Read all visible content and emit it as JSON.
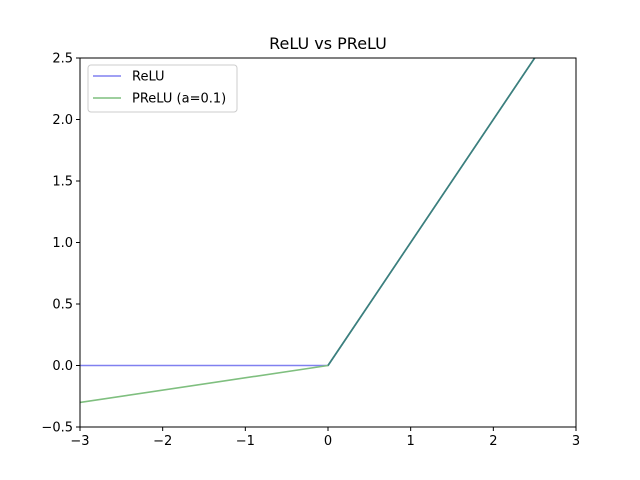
{
  "chart_data": {
    "type": "line",
    "title": "ReLU vs PReLU",
    "xlabel": "",
    "ylabel": "",
    "xlim": [
      -3,
      3
    ],
    "ylim": [
      -0.5,
      2.5
    ],
    "x_ticks": [
      -3,
      -2,
      -1,
      0,
      1,
      2,
      3
    ],
    "x_tick_labels": [
      "−3",
      "−2",
      "−1",
      "0",
      "1",
      "2",
      "3"
    ],
    "y_ticks": [
      -0.5,
      0.0,
      0.5,
      1.0,
      1.5,
      2.0,
      2.5
    ],
    "y_tick_labels": [
      "−0.5",
      "0.0",
      "0.5",
      "1.0",
      "1.5",
      "2.0",
      "2.5"
    ],
    "grid": false,
    "legend_position": "top-left",
    "series": [
      {
        "name": "ReLU",
        "color": "#8080f0",
        "x": [
          -3,
          0,
          3
        ],
        "y": [
          0,
          0,
          3
        ]
      },
      {
        "name": "PReLU (a=0.1)",
        "color": "#7fbf7f",
        "x": [
          -3,
          0,
          3
        ],
        "y": [
          -0.3,
          0,
          3
        ]
      }
    ],
    "overlap_color": "#3b7f7f"
  }
}
